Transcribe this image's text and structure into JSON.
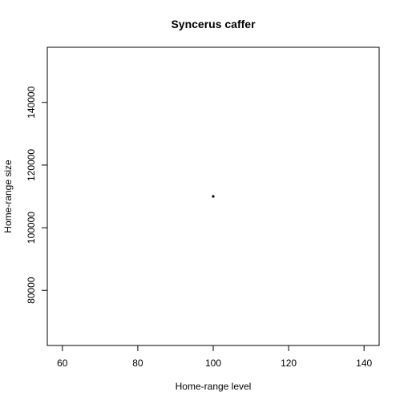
{
  "chart_data": {
    "type": "scatter",
    "title": "Syncerus caffer",
    "xlabel": "Home-range level",
    "ylabel": "Home-range size",
    "xlim": [
      56,
      144
    ],
    "ylim": [
      62400,
      157600
    ],
    "xticks": [
      60,
      80,
      100,
      120,
      140
    ],
    "yticks": [
      80000,
      100000,
      120000,
      140000
    ],
    "points": [
      {
        "x": 100,
        "y": 110000
      }
    ],
    "grid": false,
    "legend": "none"
  }
}
